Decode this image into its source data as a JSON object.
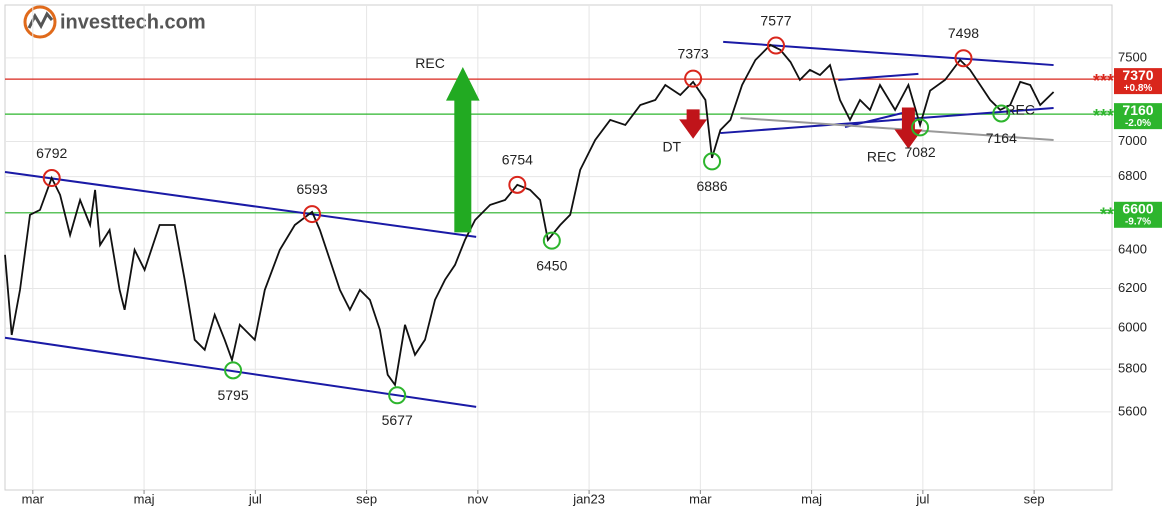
{
  "chart_data": {
    "type": "line",
    "logo": "investtech.com",
    "log_scale": true,
    "grid": true,
    "xlim": [
      -0.5,
      19.4
    ],
    "ylim": [
      5250,
      7835
    ],
    "xticks": [
      {
        "value": 0,
        "label": "mar"
      },
      {
        "value": 2,
        "label": "maj"
      },
      {
        "value": 4,
        "label": "jul"
      },
      {
        "value": 6,
        "label": "sep"
      },
      {
        "value": 8,
        "label": "nov"
      },
      {
        "value": 10,
        "label": "jan23"
      },
      {
        "value": 12,
        "label": "mar"
      },
      {
        "value": 14,
        "label": "maj"
      },
      {
        "value": 16,
        "label": "jul"
      },
      {
        "value": 18,
        "label": "sep"
      }
    ],
    "yticks": [
      5600,
      5800,
      6000,
      6200,
      6400,
      6600,
      6800,
      7000,
      7500
    ],
    "x": [
      -0.5,
      -0.38,
      -0.23,
      -0.05,
      0.13,
      0.34,
      0.49,
      0.67,
      0.85,
      1.03,
      1.12,
      1.21,
      1.38,
      1.56,
      1.65,
      1.83,
      2.01,
      2.28,
      2.55,
      2.73,
      2.91,
      3.09,
      3.27,
      3.45,
      3.58,
      3.72,
      3.99,
      4.17,
      4.44,
      4.71,
      5.02,
      5.16,
      5.34,
      5.52,
      5.7,
      5.88,
      6.06,
      6.24,
      6.38,
      6.51,
      6.69,
      6.87,
      7.05,
      7.23,
      7.41,
      7.59,
      7.77,
      7.95,
      8.22,
      8.49,
      8.71,
      8.94,
      9.12,
      9.26,
      9.48,
      9.66,
      9.84,
      10.11,
      10.38,
      10.65,
      10.92,
      11.19,
      11.37,
      11.64,
      11.87,
      12.09,
      12.21,
      12.36,
      12.54,
      12.75,
      12.99,
      13.26,
      13.44,
      13.62,
      13.79,
      13.97,
      14.15,
      14.33,
      14.51,
      14.69,
      14.87,
      15.05,
      15.23,
      15.5,
      15.74,
      15.95,
      16.13,
      16.4,
      16.67,
      16.85,
      17.03,
      17.21,
      17.39,
      17.57,
      17.75,
      17.93,
      18.11,
      18.35
    ],
    "series": [
      {
        "color": "#111111",
        "values": [
          6375,
          5967,
          6193,
          6589,
          6616,
          6793,
          6698,
          6480,
          6670,
          6534,
          6726,
          6427,
          6507,
          6193,
          6092,
          6401,
          6296,
          6534,
          6534,
          6245,
          5943,
          5894,
          6067,
          5943,
          5845,
          6017,
          5943,
          6193,
          6401,
          6534,
          6605,
          6507,
          6348,
          6193,
          6092,
          6193,
          6142,
          5992,
          5774,
          5726,
          6017,
          5870,
          5943,
          6142,
          6245,
          6322,
          6454,
          6561,
          6643,
          6670,
          6754,
          6726,
          6670,
          6454,
          6534,
          6589,
          6838,
          7009,
          7126,
          7096,
          7214,
          7244,
          7334,
          7274,
          7353,
          7244,
          6906,
          7067,
          7126,
          7334,
          7487,
          7581,
          7549,
          7475,
          7365,
          7426,
          7395,
          7456,
          7244,
          7126,
          7244,
          7185,
          7334,
          7185,
          7334,
          7096,
          7300,
          7365,
          7487,
          7426,
          7334,
          7244,
          7185,
          7214,
          7353,
          7334,
          7214,
          7292
        ]
      }
    ],
    "levels": [
      {
        "value": 7370,
        "change": "+0.8%",
        "stars": "***",
        "color": "#d9261c"
      },
      {
        "value": 7160,
        "change": "-2.0%",
        "stars": "***",
        "color": "#2db52d"
      },
      {
        "value": 6600,
        "change": "-9.7%",
        "stars": "**",
        "color": "#2db52d"
      }
    ],
    "trendlines": [
      {
        "x": [
          -0.5,
          7.97
        ],
        "values": [
          5953,
          5623
        ],
        "color": "#1a1aa6"
      },
      {
        "x": [
          -0.5,
          7.97
        ],
        "values": [
          6826,
          6470
        ],
        "color": "#1a1aa6"
      },
      {
        "x": [
          12.41,
          18.35
        ],
        "values": [
          7600,
          7456
        ],
        "color": "#1a1aa6"
      },
      {
        "x": [
          12.36,
          18.35
        ],
        "values": [
          7049,
          7196
        ],
        "color": "#1a1aa6"
      },
      {
        "x": [
          14.48,
          15.92
        ],
        "values": [
          7365,
          7402
        ],
        "color": "#1a1aa6"
      },
      {
        "x": [
          14.6,
          15.86
        ],
        "values": [
          7084,
          7185
        ],
        "color": "#1a1aa6"
      },
      {
        "x": [
          12.72,
          18.35
        ],
        "values": [
          7137,
          7009
        ],
        "color": "#999999"
      }
    ],
    "points": [
      {
        "x": 0.34,
        "value": 6792,
        "color": "#d9261c"
      },
      {
        "x": 5.02,
        "value": 6593,
        "color": "#d9261c"
      },
      {
        "x": 8.71,
        "value": 6754,
        "color": "#d9261c"
      },
      {
        "x": 11.87,
        "value": 7373,
        "color": "#d9261c"
      },
      {
        "x": 13.36,
        "value": 7577,
        "color": "#d9261c"
      },
      {
        "x": 16.73,
        "value": 7498,
        "color": "#d9261c"
      },
      {
        "x": 3.6,
        "value": 5795,
        "color": "#2db52d"
      },
      {
        "x": 6.55,
        "value": 5677,
        "color": "#2db52d"
      },
      {
        "x": 9.33,
        "value": 6450,
        "color": "#2db52d"
      },
      {
        "x": 12.21,
        "value": 6886,
        "color": "#2db52d"
      },
      {
        "x": 15.95,
        "value": 7082,
        "color": "#2db52d"
      },
      {
        "x": 17.41,
        "value": 7164,
        "color": "#2db52d"
      }
    ],
    "signals": [
      {
        "label": "REC",
        "x": 7.73,
        "from": 6497,
        "to": 7437,
        "color": "#22aa22"
      },
      {
        "label": "DT",
        "x": 11.87,
        "from": 7185,
        "to": 7021,
        "color": "#c0141a"
      },
      {
        "label": "REC",
        "x": 15.74,
        "from": 7196,
        "to": 6963,
        "color": "#c0141a"
      },
      {
        "label": "REC",
        "x": 17.75,
        "at": 7180,
        "color": "#2db52d"
      }
    ]
  }
}
